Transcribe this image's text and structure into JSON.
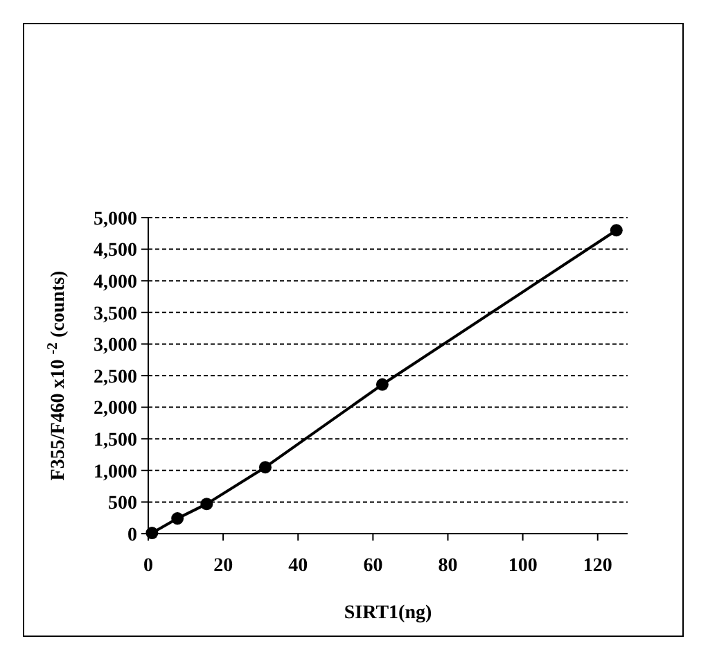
{
  "chart_data": {
    "type": "line",
    "xlabel": "SIRT1(ng)",
    "ylabel": "F355/F460 x10 $^{-2}$ (counts)",
    "x": [
      1,
      7.8,
      15.6,
      31.25,
      62.5,
      125
    ],
    "series": [
      {
        "color": "#000000",
        "values": [
          10,
          240,
          470,
          1050,
          2360,
          4800
        ]
      }
    ],
    "xlim": [
      0,
      128
    ],
    "xticks": [
      0,
      20,
      40,
      60,
      80,
      100,
      120
    ],
    "ylim": [
      0,
      5000
    ],
    "yticks": [
      {
        "value": 0,
        "label": "0"
      },
      {
        "value": 500,
        "label": "500"
      },
      {
        "value": 1000,
        "label": "1,000"
      },
      {
        "value": 1500,
        "label": "1,500"
      },
      {
        "value": 2000,
        "label": "2,000"
      },
      {
        "value": 2500,
        "label": "2,500"
      },
      {
        "value": 3000,
        "label": "3,000"
      },
      {
        "value": 3500,
        "label": "3,500"
      },
      {
        "value": 4000,
        "label": "4,000"
      },
      {
        "value": 4500,
        "label": "4,500"
      },
      {
        "value": 5000,
        "label": "5,000"
      }
    ],
    "grid": "y",
    "marker": "circle",
    "line_style": "solid"
  }
}
